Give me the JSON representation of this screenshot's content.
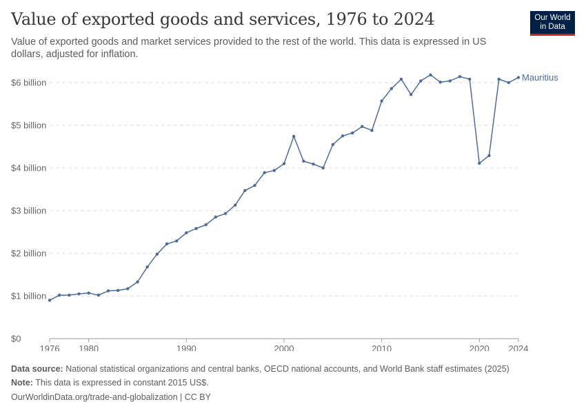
{
  "header": {
    "title": "Value of exported goods and services, 1976 to 2024",
    "subtitle": "Value of exported goods and market services provided to the rest of the world. This data is expressed in US dollars, adjusted for inflation."
  },
  "logo": {
    "line1": "Our World",
    "line2": "in Data"
  },
  "footer": {
    "source_label": "Data source:",
    "source_text": "National statistical organizations and central banks, OECD national accounts, and World Bank staff estimates (2025)",
    "note_label": "Note:",
    "note_text": "This data is expressed in constant 2015 US$.",
    "url": "OurWorldinData.org/trade-and-globalization | CC BY"
  },
  "colors": {
    "series": "#4c6a9c",
    "grid": "#dddddd",
    "axis": "#999999"
  },
  "chart_data": {
    "type": "line",
    "title": "Value of exported goods and services, 1976 to 2024",
    "x_ticks": [
      1976,
      1980,
      1990,
      2000,
      2010,
      2020,
      2024
    ],
    "x_tick_labels": [
      "1976",
      "1980",
      "1990",
      "2000",
      "2010",
      "2020",
      "2024"
    ],
    "y_ticks": [
      0,
      1,
      2,
      3,
      4,
      5,
      6
    ],
    "y_tick_labels": [
      "$0",
      "$1 billion",
      "$2 billion",
      "$3 billion",
      "$4 billion",
      "$5 billion",
      "$6 billion"
    ],
    "xlim": [
      1976,
      2024
    ],
    "ylim": [
      0,
      6
    ],
    "y_unit": "billion US$ (constant 2015)",
    "grid": "horizontal dashed",
    "legend": "inline label at line end",
    "series": [
      {
        "name": "Mauritius",
        "x": [
          1976,
          1977,
          1978,
          1979,
          1980,
          1981,
          1982,
          1983,
          1984,
          1985,
          1986,
          1987,
          1988,
          1989,
          1990,
          1991,
          1992,
          1993,
          1994,
          1995,
          1996,
          1997,
          1998,
          1999,
          2000,
          2001,
          2002,
          2003,
          2004,
          2005,
          2006,
          2007,
          2008,
          2009,
          2010,
          2011,
          2012,
          2013,
          2014,
          2015,
          2016,
          2017,
          2018,
          2019,
          2020,
          2021,
          2022,
          2023,
          2024
        ],
        "values": [
          0.9,
          1.02,
          1.02,
          1.05,
          1.07,
          1.02,
          1.12,
          1.13,
          1.17,
          1.33,
          1.68,
          1.98,
          2.22,
          2.29,
          2.48,
          2.58,
          2.67,
          2.85,
          2.93,
          3.13,
          3.47,
          3.59,
          3.89,
          3.94,
          4.1,
          4.74,
          4.16,
          4.09,
          4.0,
          4.55,
          4.75,
          4.82,
          4.97,
          4.88,
          5.57,
          5.86,
          6.08,
          5.72,
          6.04,
          6.18,
          6.01,
          6.04,
          6.14,
          6.08,
          4.11,
          4.29,
          6.08,
          6.0,
          6.12
        ]
      }
    ]
  }
}
